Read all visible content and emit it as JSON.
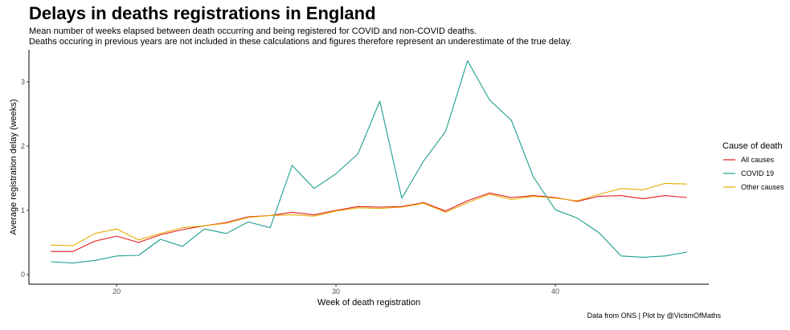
{
  "header": {
    "title": "Delays in deaths registrations in England",
    "subtitle_line1": "Mean number of weeks elapsed between death occurring and being registered for COVID and non-COVID deaths.",
    "subtitle_line2": "Deaths occuring in previous years are not included in these calculations and figures therefore represent an underestimate of the true delay."
  },
  "caption": "Data from ONS | Plot by @VictimOfMaths",
  "colors": {
    "all_causes": "#e41a1c",
    "covid": "#1b9e8f",
    "other": "#e6ab02",
    "axis": "#000000"
  },
  "chart_data": {
    "type": "line",
    "title": "Delays in deaths registrations in England",
    "xlabel": "Week of death registration",
    "ylabel": "Average registration delay (weeks)",
    "xlim": [
      16,
      47
    ],
    "ylim": [
      -0.15,
      3.5
    ],
    "x_ticks": [
      20,
      30,
      40
    ],
    "y_ticks": [
      0,
      1,
      2,
      3
    ],
    "grid": false,
    "legend_title": "Cause of death",
    "legend_position": "right",
    "x": [
      17,
      18,
      19,
      20,
      21,
      22,
      23,
      24,
      25,
      26,
      27,
      28,
      29,
      30,
      31,
      32,
      33,
      34,
      35,
      36,
      37,
      38,
      39,
      40,
      41,
      42,
      43,
      44,
      45,
      46
    ],
    "series": [
      {
        "name": "All causes",
        "color": "#e41a1c",
        "values": [
          0.36,
          0.36,
          0.52,
          0.6,
          0.5,
          0.62,
          0.7,
          0.76,
          0.81,
          0.9,
          0.92,
          0.97,
          0.93,
          1.0,
          1.06,
          1.05,
          1.06,
          1.12,
          0.99,
          1.15,
          1.27,
          1.2,
          1.23,
          1.2,
          1.14,
          1.22,
          1.23,
          1.18,
          1.23,
          1.2
        ]
      },
      {
        "name": "COVID 19",
        "color": "#1b9e8f",
        "values": [
          0.2,
          0.18,
          0.22,
          0.29,
          0.3,
          0.55,
          0.44,
          0.71,
          0.64,
          0.82,
          0.73,
          1.7,
          1.34,
          1.57,
          1.88,
          2.7,
          1.19,
          1.77,
          2.23,
          3.33,
          2.72,
          2.4,
          1.52,
          1.01,
          0.88,
          0.65,
          0.29,
          0.27,
          0.29,
          0.35
        ]
      },
      {
        "name": "Other causes",
        "color": "#e6ab02",
        "values": [
          0.46,
          0.45,
          0.64,
          0.71,
          0.54,
          0.64,
          0.73,
          0.76,
          0.8,
          0.89,
          0.92,
          0.93,
          0.91,
          0.99,
          1.04,
          1.03,
          1.05,
          1.11,
          0.97,
          1.12,
          1.25,
          1.17,
          1.22,
          1.19,
          1.15,
          1.25,
          1.34,
          1.32,
          1.42,
          1.41
        ]
      }
    ]
  }
}
